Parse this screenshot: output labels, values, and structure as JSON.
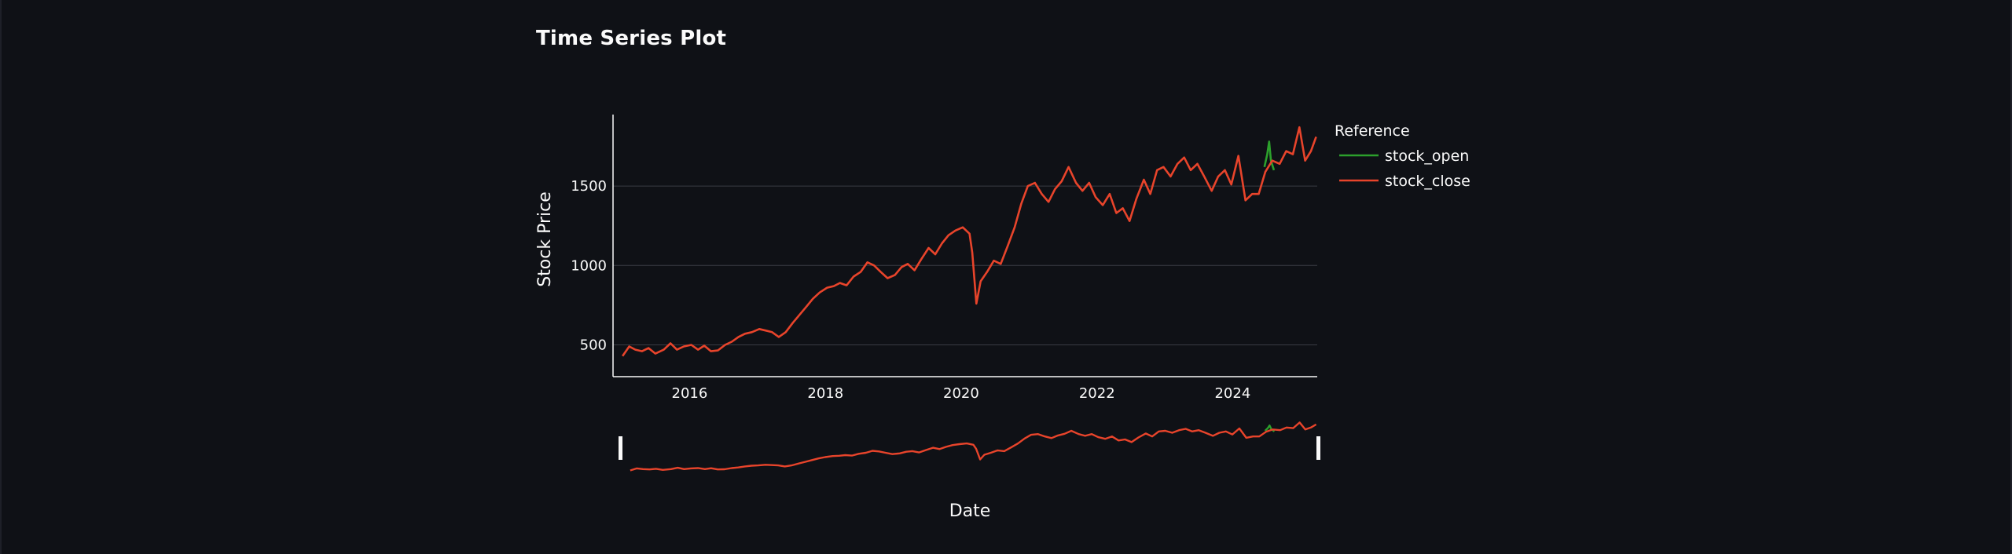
{
  "page": {
    "title": "Time Series Plot"
  },
  "chart_data": {
    "type": "line",
    "xlabel": "Date",
    "ylabel": "Stock Price",
    "x_ticks": [
      "2016",
      "2018",
      "2020",
      "2022",
      "2024"
    ],
    "y_ticks": [
      500,
      1000,
      1500
    ],
    "xlim": [
      "2014-11-15",
      "2025-03-31"
    ],
    "ylim": [
      300,
      1950
    ],
    "grid": "horizontal",
    "legend": {
      "title": "Reference",
      "position": "right"
    },
    "range_slider": true,
    "colors": {
      "stock_open": "#2ca02c",
      "stock_close": "#e8442b",
      "grid": "#3a3c44",
      "axis": "#fafafa"
    },
    "series": [
      {
        "name": "stock_open",
        "color": "#2ca02c",
        "points": [
          [
            "2024-06-20",
            1620
          ],
          [
            "2024-07-05",
            1700
          ],
          [
            "2024-07-15",
            1780
          ],
          [
            "2024-07-25",
            1660
          ],
          [
            "2024-08-10",
            1600
          ]
        ]
      },
      {
        "name": "stock_close",
        "color": "#e8442b",
        "points": [
          [
            "2015-01-05",
            430
          ],
          [
            "2015-02-10",
            490
          ],
          [
            "2015-03-15",
            470
          ],
          [
            "2015-04-20",
            460
          ],
          [
            "2015-05-25",
            480
          ],
          [
            "2015-07-01",
            445
          ],
          [
            "2015-08-15",
            470
          ],
          [
            "2015-09-20",
            510
          ],
          [
            "2015-10-25",
            470
          ],
          [
            "2015-12-01",
            490
          ],
          [
            "2016-01-10",
            500
          ],
          [
            "2016-02-15",
            470
          ],
          [
            "2016-03-20",
            495
          ],
          [
            "2016-04-25",
            460
          ],
          [
            "2016-06-01",
            465
          ],
          [
            "2016-07-10",
            500
          ],
          [
            "2016-08-15",
            520
          ],
          [
            "2016-09-20",
            550
          ],
          [
            "2016-10-25",
            570
          ],
          [
            "2016-12-01",
            580
          ],
          [
            "2017-01-10",
            600
          ],
          [
            "2017-02-15",
            590
          ],
          [
            "2017-03-20",
            580
          ],
          [
            "2017-04-25",
            550
          ],
          [
            "2017-06-01",
            580
          ],
          [
            "2017-07-10",
            640
          ],
          [
            "2017-08-15",
            690
          ],
          [
            "2017-09-20",
            740
          ],
          [
            "2017-10-25",
            790
          ],
          [
            "2017-12-01",
            830
          ],
          [
            "2018-01-10",
            860
          ],
          [
            "2018-02-15",
            870
          ],
          [
            "2018-03-20",
            890
          ],
          [
            "2018-04-25",
            875
          ],
          [
            "2018-06-01",
            930
          ],
          [
            "2018-07-10",
            960
          ],
          [
            "2018-08-15",
            1020
          ],
          [
            "2018-09-20",
            1000
          ],
          [
            "2018-10-25",
            960
          ],
          [
            "2018-12-01",
            920
          ],
          [
            "2019-01-10",
            940
          ],
          [
            "2019-02-15",
            990
          ],
          [
            "2019-03-20",
            1010
          ],
          [
            "2019-04-25",
            970
          ],
          [
            "2019-06-01",
            1040
          ],
          [
            "2019-07-10",
            1110
          ],
          [
            "2019-08-15",
            1070
          ],
          [
            "2019-09-20",
            1140
          ],
          [
            "2019-10-25",
            1190
          ],
          [
            "2019-12-01",
            1220
          ],
          [
            "2020-01-10",
            1240
          ],
          [
            "2020-02-15",
            1200
          ],
          [
            "2020-03-01",
            1080
          ],
          [
            "2020-03-23",
            760
          ],
          [
            "2020-04-15",
            900
          ],
          [
            "2020-05-20",
            960
          ],
          [
            "2020-06-25",
            1030
          ],
          [
            "2020-08-01",
            1010
          ],
          [
            "2020-09-10",
            1130
          ],
          [
            "2020-10-15",
            1240
          ],
          [
            "2020-11-20",
            1390
          ],
          [
            "2020-12-25",
            1500
          ],
          [
            "2021-02-01",
            1520
          ],
          [
            "2021-03-10",
            1450
          ],
          [
            "2021-04-15",
            1400
          ],
          [
            "2021-05-20",
            1480
          ],
          [
            "2021-06-25",
            1530
          ],
          [
            "2021-08-01",
            1620
          ],
          [
            "2021-09-10",
            1520
          ],
          [
            "2021-10-15",
            1470
          ],
          [
            "2021-11-20",
            1520
          ],
          [
            "2021-12-25",
            1430
          ],
          [
            "2022-02-01",
            1380
          ],
          [
            "2022-03-10",
            1450
          ],
          [
            "2022-04-15",
            1330
          ],
          [
            "2022-05-20",
            1360
          ],
          [
            "2022-06-25",
            1280
          ],
          [
            "2022-08-01",
            1420
          ],
          [
            "2022-09-10",
            1540
          ],
          [
            "2022-10-15",
            1450
          ],
          [
            "2022-11-20",
            1600
          ],
          [
            "2022-12-25",
            1620
          ],
          [
            "2023-02-01",
            1560
          ],
          [
            "2023-03-10",
            1640
          ],
          [
            "2023-04-15",
            1680
          ],
          [
            "2023-05-20",
            1600
          ],
          [
            "2023-06-25",
            1640
          ],
          [
            "2023-08-01",
            1560
          ],
          [
            "2023-09-10",
            1470
          ],
          [
            "2023-10-15",
            1560
          ],
          [
            "2023-11-20",
            1600
          ],
          [
            "2023-12-25",
            1510
          ],
          [
            "2024-02-01",
            1690
          ],
          [
            "2024-03-10",
            1410
          ],
          [
            "2024-04-15",
            1450
          ],
          [
            "2024-05-20",
            1450
          ],
          [
            "2024-06-25",
            1590
          ],
          [
            "2024-08-01",
            1660
          ],
          [
            "2024-09-10",
            1640
          ],
          [
            "2024-10-15",
            1720
          ],
          [
            "2024-11-20",
            1700
          ],
          [
            "2024-12-25",
            1870
          ],
          [
            "2025-01-25",
            1660
          ],
          [
            "2025-02-25",
            1720
          ],
          [
            "2025-03-25",
            1810
          ]
        ]
      }
    ]
  }
}
